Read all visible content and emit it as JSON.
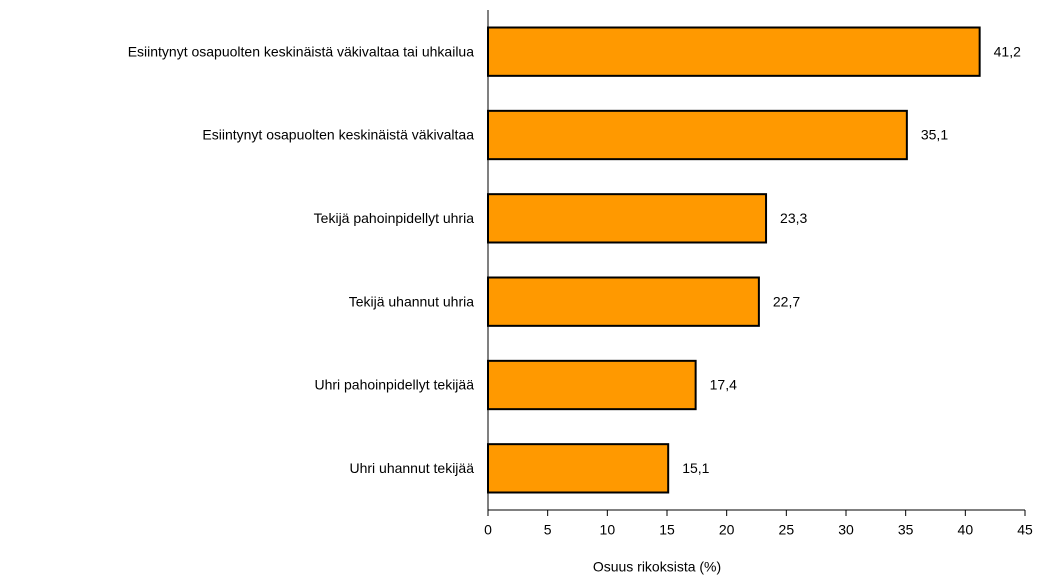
{
  "chart_data": {
    "type": "bar",
    "orientation": "horizontal",
    "categories": [
      "Esiintynyt osapuolten keskinäistä väkivaltaa tai uhkailua",
      "Esiintynyt osapuolten keskinäistä väkivaltaa",
      "Tekijä pahoinpidellyt uhria",
      "Tekijä uhannut uhria",
      "Uhri pahoinpidellyt tekijää",
      "Uhri uhannut tekijää"
    ],
    "values": [
      41.2,
      35.1,
      23.3,
      22.7,
      17.4,
      15.1
    ],
    "value_labels": [
      "41,2",
      "35,1",
      "23,3",
      "22,7",
      "17,4",
      "15,1"
    ],
    "color": "#ff9900",
    "xlabel": "Osuus rikoksista (%)",
    "xlim": [
      0,
      45
    ],
    "xticks": [
      0,
      5,
      10,
      15,
      20,
      25,
      30,
      35,
      40,
      45
    ]
  }
}
